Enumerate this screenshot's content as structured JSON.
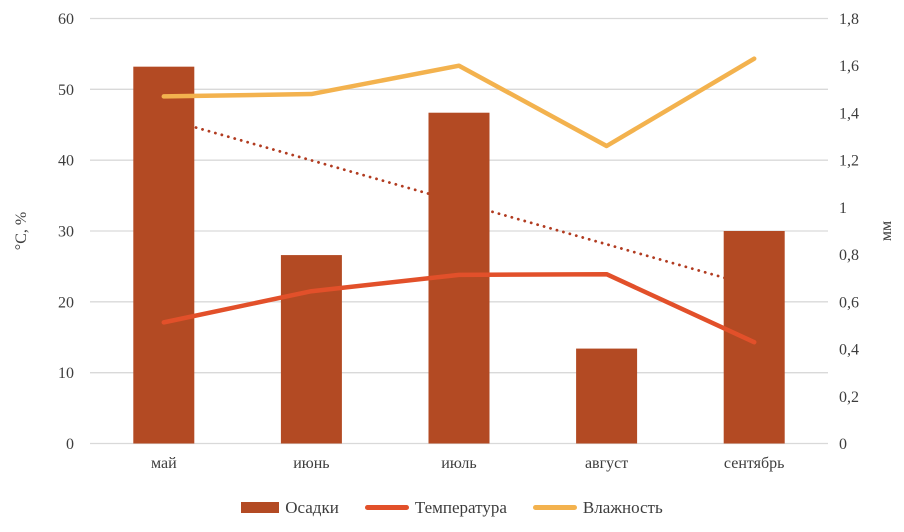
{
  "chart_data": {
    "type": "combo",
    "categories": [
      "май",
      "июнь",
      "июль",
      "август",
      "сентябрь"
    ],
    "series": [
      {
        "name": "Осадки",
        "chart_type": "bar",
        "axis": "left",
        "color": "#B34A23",
        "values": [
          53.2,
          26.6,
          46.7,
          13.4,
          30
        ]
      },
      {
        "name": "Температура",
        "chart_type": "line",
        "axis": "left",
        "color": "#E2502A",
        "values": [
          17.1,
          21.5,
          23.8,
          23.9,
          14.3
        ]
      },
      {
        "name": "Влажность",
        "chart_type": "line",
        "axis": "right",
        "color": "#F3B24E",
        "values": [
          1.47,
          1.48,
          1.6,
          1.26,
          1.63
        ]
      }
    ],
    "trendline": {
      "for_series": "Осадки",
      "style": "dotted",
      "axis": "left",
      "color": "#B13B20",
      "start_value": 45.9,
      "end_value": 22.2
    },
    "axes": {
      "left": {
        "label": "°C, %",
        "min": 0,
        "max": 60,
        "ticks": [
          "0",
          "10",
          "20",
          "30",
          "40",
          "50",
          "60"
        ]
      },
      "right": {
        "label": "мм",
        "min": 0,
        "max": 1.8,
        "ticks": [
          "0",
          "0,2",
          "0,4",
          "0,6",
          "0,8",
          "1",
          "1,2",
          "1,4",
          "1,6",
          "1,8"
        ]
      }
    },
    "grid": true,
    "legend_position": "bottom",
    "colors": {
      "gridline": "#D9D9D9",
      "text": "#3D3D3D",
      "background": "#FFFFFF"
    }
  }
}
